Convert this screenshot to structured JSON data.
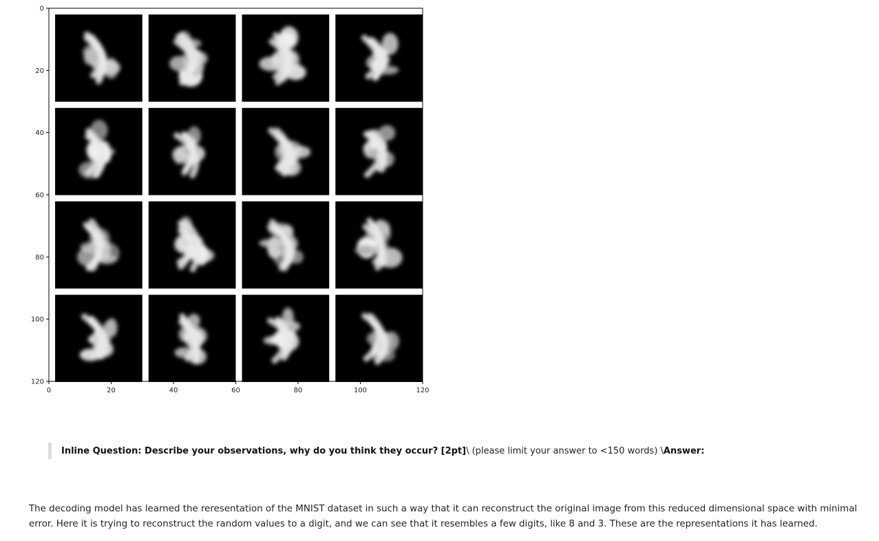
{
  "chart_data": {
    "type": "image_grid",
    "xlim": [
      0,
      120
    ],
    "ylim": [
      120,
      0
    ],
    "xticks": [
      "0",
      "20",
      "40",
      "60",
      "80",
      "100",
      "120"
    ],
    "yticks": [
      "0",
      "20",
      "40",
      "60",
      "80",
      "100",
      "120"
    ],
    "grid": {
      "rows": 4,
      "cols": 4,
      "cell_size_units": 28,
      "padding_units": 2
    },
    "tile_background": "#000000",
    "frame_background": "#ffffff"
  },
  "question": {
    "bold_lead": "Inline Question: Describe your observations, why do you think they occur? [2pt]",
    "middle": " \\ (please limit your answer to <150 words) \\ ",
    "answer_label": "Answer:"
  },
  "answer": {
    "text": "The decoding model has learned the reresentation of the MNIST dataset in such a way that it can reconstruct the original image from this reduced dimensional space with minimal error. Here it is trying to reconstruct the random values to a digit, and we can see that it resembles a few digits, like 8 and 3. These are the representations it has learned."
  }
}
